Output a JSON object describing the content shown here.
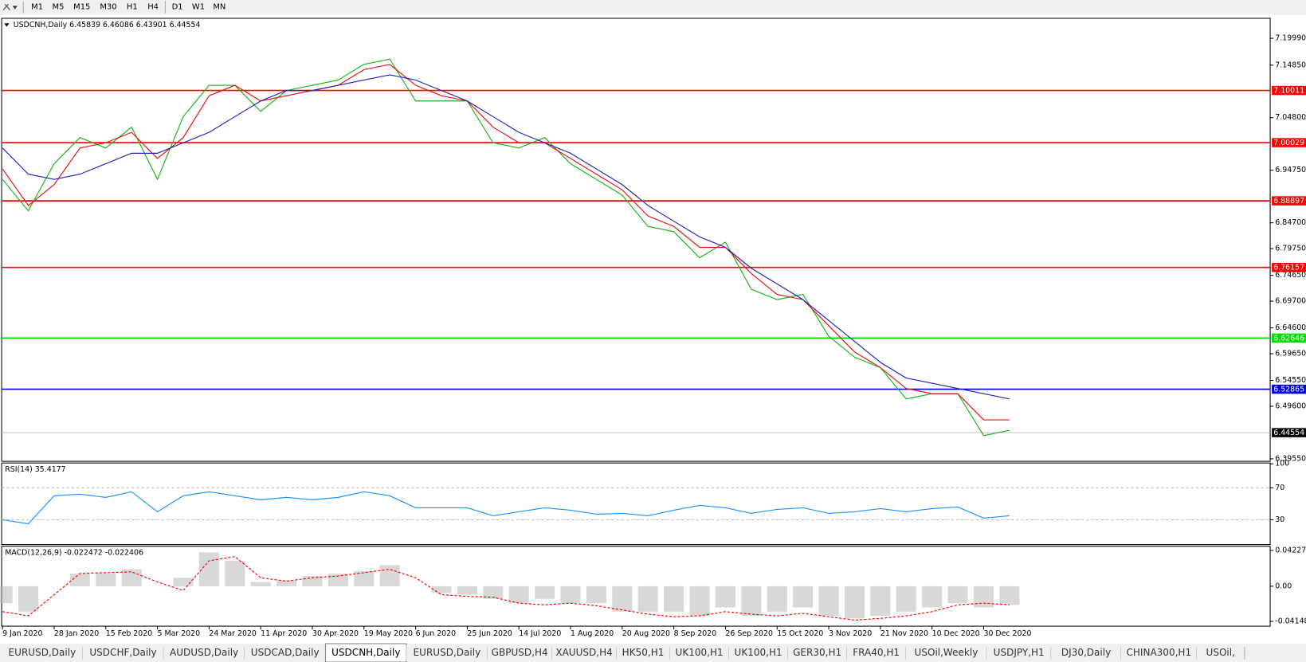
{
  "toolbar": {
    "timeframes": [
      "M1",
      "M5",
      "M15",
      "M30",
      "H1",
      "H4",
      "D1",
      "W1",
      "MN"
    ]
  },
  "tabs": {
    "items": [
      "EURUSD,Daily",
      "USDCHF,Daily",
      "AUDUSD,Daily",
      "USDCAD,Daily",
      "USDCNH,Daily",
      "EURUSD,Daily",
      "GBPUSD,H4",
      "XAUUSD,H4",
      "HK50,H1",
      "UK100,H1",
      "UK100,H1",
      "GER30,H1",
      "FRA40,H1",
      "USOil,Weekly",
      "USDJPY,H1",
      "DJ30,Daily",
      "CHINA300,H1",
      "USOil,"
    ],
    "active": 4
  },
  "date_axis": {
    "labels": [
      "9 Jan 2020",
      "28 Jan 2020",
      "15 Feb 2020",
      "5 Mar 2020",
      "24 Mar 2020",
      "11 Apr 2020",
      "30 Apr 2020",
      "19 May 2020",
      "6 Jun 2020",
      "25 Jun 2020",
      "14 Jul 2020",
      "1 Aug 2020",
      "20 Aug 2020",
      "8 Sep 2020",
      "26 Sep 2020",
      "15 Oct 2020",
      "3 Nov 2020",
      "21 Nov 2020",
      "10 Dec 2020",
      "30 Dec 2020"
    ]
  },
  "chart_data": [
    {
      "type": "line",
      "title": "USDCNH,Daily  6.45839 6.46086 6.43901 6.44554",
      "ylim": [
        6.3923,
        7.2365
      ],
      "yticks": [
        {
          "value": 7.1999,
          "label": "7.19990"
        },
        {
          "value": 7.1485,
          "label": "7.14850"
        },
        {
          "value": 7.048,
          "label": "7.04800"
        },
        {
          "value": 6.9475,
          "label": "6.94750"
        },
        {
          "value": 6.847,
          "label": "6.84700"
        },
        {
          "value": 6.7975,
          "label": "6.79750"
        },
        {
          "value": 6.7465,
          "label": "6.74650"
        },
        {
          "value": 6.697,
          "label": "6.69700"
        },
        {
          "value": 6.646,
          "label": "6.64600"
        },
        {
          "value": 6.5965,
          "label": "6.59650"
        },
        {
          "value": 6.5455,
          "label": "6.54550"
        },
        {
          "value": 6.496,
          "label": "6.49600"
        },
        {
          "value": 6.3955,
          "label": "6.39550"
        }
      ],
      "levels": [
        {
          "value": 7.10011,
          "color": "#ff0000"
        },
        {
          "value": 7.00029,
          "color": "#ff0000"
        },
        {
          "value": 6.88897,
          "color": "#ff0000"
        },
        {
          "value": 6.76157,
          "color": "#ff0000"
        },
        {
          "value": 6.62646,
          "color": "#00dd00"
        },
        {
          "value": 6.52865,
          "color": "#0000dd"
        },
        {
          "value": 6.44554,
          "color": "#000000"
        }
      ],
      "series": [
        {
          "color": "#19b219",
          "values": [
            6.93,
            6.87,
            6.96,
            7.01,
            6.99,
            7.03,
            6.93,
            7.05,
            7.11,
            7.11,
            7.06,
            7.1,
            7.11,
            7.12,
            7.15,
            7.16,
            7.08,
            7.08,
            7.08,
            7.0,
            6.99,
            7.01,
            6.96,
            6.93,
            6.9,
            6.84,
            6.83,
            6.78,
            6.81,
            6.72,
            6.7,
            6.71,
            6.63,
            6.59,
            6.57,
            6.51,
            6.52,
            6.52,
            6.44,
            6.45
          ]
        },
        {
          "color": "#e81010",
          "values": [
            6.95,
            6.88,
            6.92,
            6.99,
            7.0,
            7.02,
            6.97,
            7.01,
            7.09,
            7.11,
            7.08,
            7.09,
            7.1,
            7.11,
            7.14,
            7.15,
            7.11,
            7.09,
            7.08,
            7.03,
            7.0,
            7.0,
            6.97,
            6.94,
            6.91,
            6.86,
            6.84,
            6.8,
            6.8,
            6.75,
            6.71,
            6.7,
            6.65,
            6.6,
            6.57,
            6.53,
            6.52,
            6.52,
            6.47,
            6.47
          ]
        },
        {
          "color": "#2020c0",
          "values": [
            6.99,
            6.94,
            6.93,
            6.94,
            6.96,
            6.98,
            6.98,
            7.0,
            7.02,
            7.05,
            7.08,
            7.1,
            7.1,
            7.11,
            7.12,
            7.13,
            7.12,
            7.1,
            7.08,
            7.05,
            7.02,
            7.0,
            6.98,
            6.95,
            6.92,
            6.88,
            6.85,
            6.82,
            6.8,
            6.76,
            6.73,
            6.7,
            6.66,
            6.62,
            6.58,
            6.55,
            6.54,
            6.53,
            6.52,
            6.51
          ]
        }
      ]
    },
    {
      "type": "line",
      "title": "RSI(14) 35.4177",
      "ylim": [
        0,
        100
      ],
      "yticks": [
        100,
        70,
        30
      ],
      "series": [
        {
          "color": "#1e90ff",
          "values": [
            30,
            25,
            60,
            62,
            58,
            65,
            40,
            60,
            65,
            60,
            55,
            58,
            55,
            58,
            65,
            60,
            45,
            45,
            45,
            35,
            40,
            45,
            42,
            37,
            38,
            35,
            42,
            48,
            45,
            38,
            43,
            45,
            38,
            40,
            44,
            40,
            44,
            46,
            32,
            35
          ]
        }
      ]
    },
    {
      "type": "bar",
      "title": "MACD(12,26,9) -0.022472 -0.022406",
      "ylim": [
        -0.0462,
        0.0462
      ],
      "yticks": [
        0.042275,
        {
          "value": 0,
          "label": "0.00"
        },
        -0.04148
      ],
      "color": "#b8b8b8",
      "values": [
        -0.02,
        -0.03,
        0.0,
        0.015,
        0.015,
        0.02,
        0.0,
        0.01,
        0.04,
        0.03,
        0.005,
        0.007,
        0.012,
        0.015,
        0.018,
        0.025,
        0.0,
        -0.008,
        -0.01,
        -0.015,
        -0.02,
        -0.015,
        -0.02,
        -0.02,
        -0.03,
        -0.03,
        -0.03,
        -0.035,
        -0.025,
        -0.035,
        -0.03,
        -0.025,
        -0.035,
        -0.038,
        -0.035,
        -0.03,
        -0.025,
        -0.02,
        -0.025,
        -0.022
      ],
      "series": [
        {
          "color": "#ff0000",
          "dash": true,
          "values": [
            -0.03,
            -0.035,
            -0.01,
            0.015,
            0.016,
            0.017,
            0.005,
            -0.005,
            0.03,
            0.035,
            0.01,
            0.006,
            0.01,
            0.012,
            0.016,
            0.02,
            0.01,
            -0.01,
            -0.012,
            -0.013,
            -0.02,
            -0.022,
            -0.02,
            -0.023,
            -0.028,
            -0.033,
            -0.036,
            -0.035,
            -0.03,
            -0.033,
            -0.035,
            -0.032,
            -0.036,
            -0.04,
            -0.038,
            -0.035,
            -0.03,
            -0.022,
            -0.02,
            -0.022
          ]
        }
      ]
    }
  ]
}
